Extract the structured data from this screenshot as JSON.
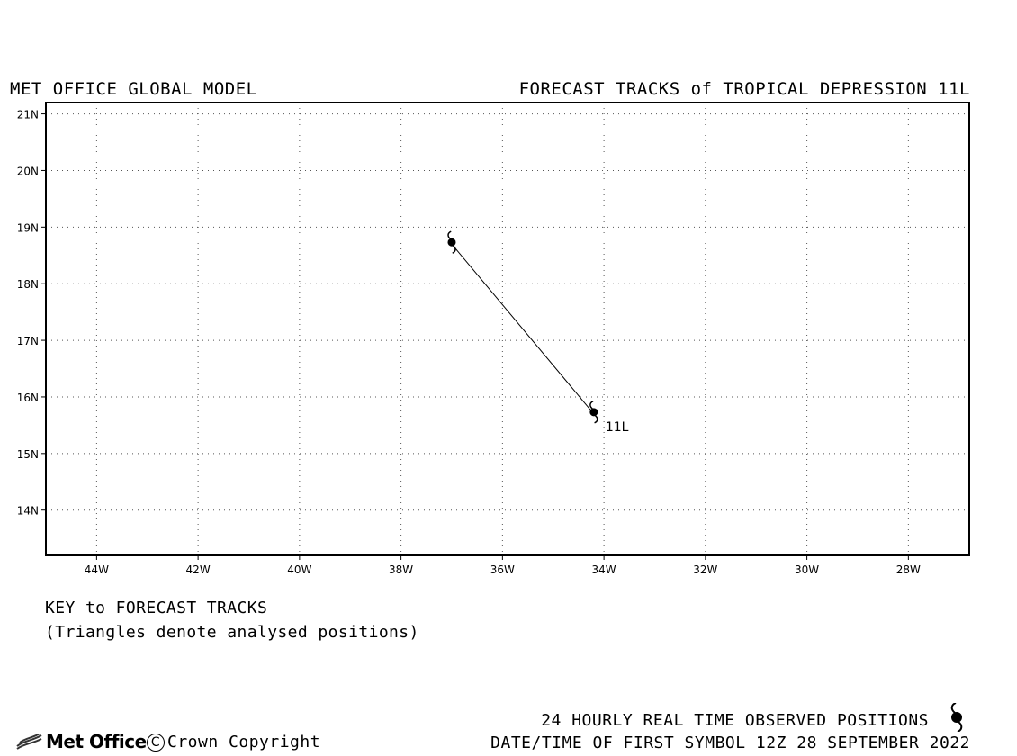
{
  "header": {
    "left_title": "MET OFFICE GLOBAL MODEL",
    "right_title": "FORECAST TRACKS of TROPICAL DEPRESSION 11L"
  },
  "key": {
    "title": "KEY to FORECAST TRACKS",
    "subtitle": "(Triangles denote analysed positions)"
  },
  "footer": {
    "observed_label": "24 HOURLY REAL TIME OBSERVED POSITIONS",
    "date_label": "DATE/TIME OF FIRST SYMBOL 12Z 28 SEPTEMBER 2022",
    "logo_text": "Met Office",
    "copyright_text": "Crown Copyright",
    "copyright_symbol": "C"
  },
  "chart_data": {
    "type": "line",
    "title": "FORECAST TRACKS of TROPICAL DEPRESSION 11L",
    "xlim": [
      -45,
      -26.8
    ],
    "ylim": [
      13.2,
      21.2
    ],
    "x_ticks": [
      -44,
      -42,
      -40,
      -38,
      -36,
      -34,
      -32,
      -30,
      -28
    ],
    "x_tick_labels": [
      "44W",
      "42W",
      "40W",
      "38W",
      "36W",
      "34W",
      "32W",
      "30W",
      "28W"
    ],
    "y_ticks": [
      14,
      15,
      16,
      17,
      18,
      19,
      20,
      21
    ],
    "y_tick_labels": [
      "14N",
      "15N",
      "16N",
      "17N",
      "18N",
      "19N",
      "20N",
      "21N"
    ],
    "grid": true,
    "series": [
      {
        "name": "11L",
        "points": [
          {
            "lon": -34.2,
            "lat": 15.7
          },
          {
            "lon": -37.0,
            "lat": 18.7
          }
        ]
      }
    ],
    "storm_label": "11L"
  }
}
